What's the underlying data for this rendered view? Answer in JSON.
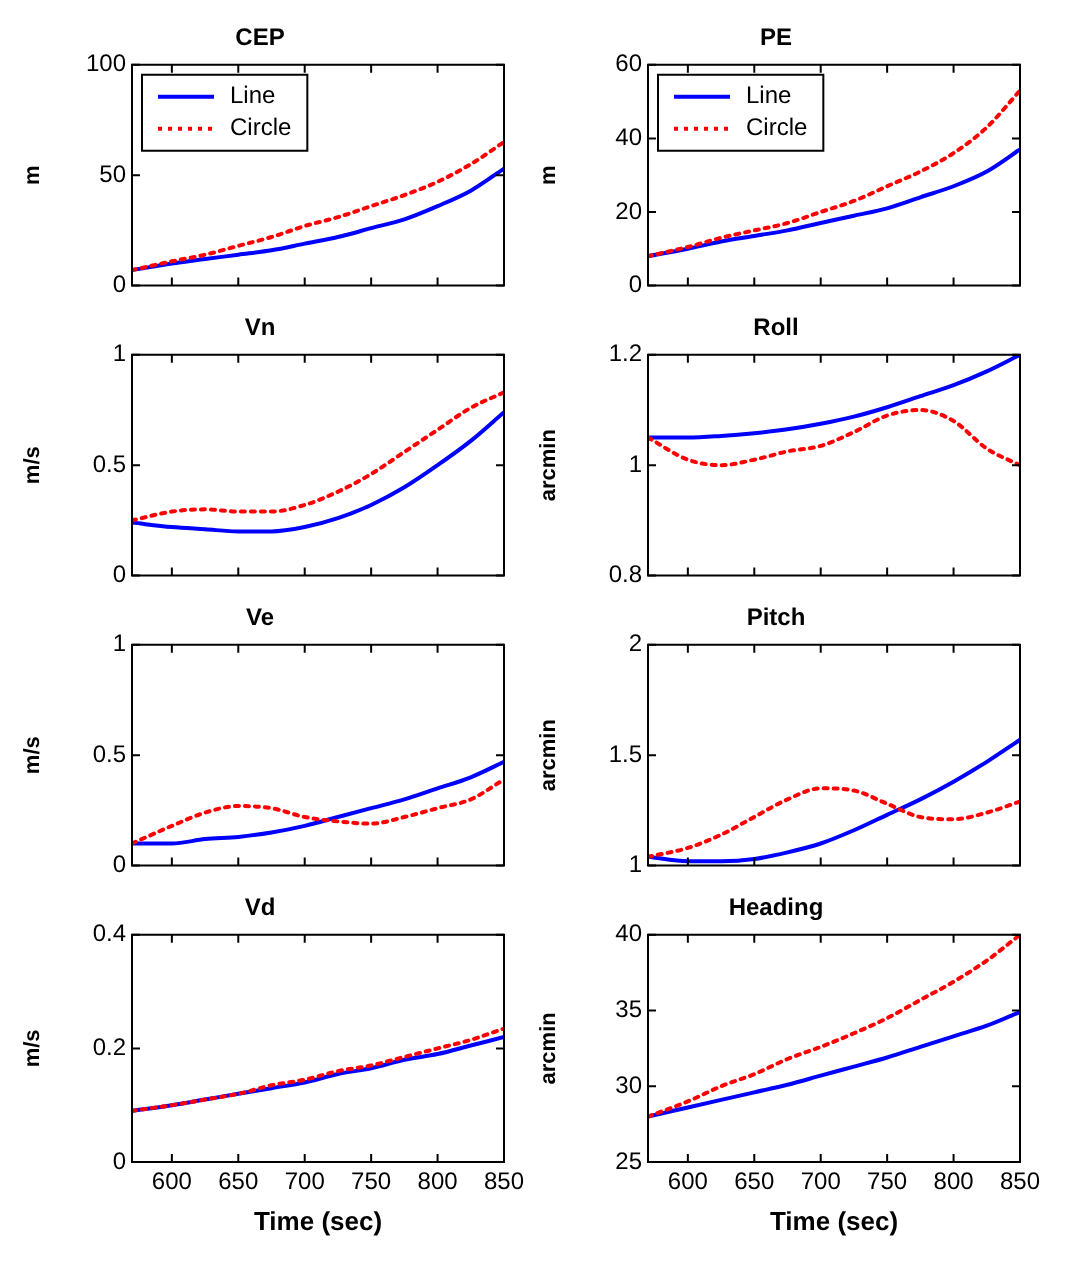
{
  "chart_data": [
    {
      "type": "line",
      "title": "CEP",
      "ylabel": "m",
      "x": [
        570,
        600,
        625,
        650,
        675,
        700,
        725,
        750,
        775,
        800,
        825,
        850
      ],
      "xlim": [
        570,
        850
      ],
      "xticks": [
        600,
        650,
        700,
        750,
        800,
        850
      ],
      "ylim": [
        0,
        100
      ],
      "yticks": [
        0,
        50,
        100
      ],
      "grid": false,
      "legend": "top left",
      "tick_labels": "y",
      "marker": "none",
      "series": [
        {
          "name": "Line",
          "color": "#0000ff",
          "line_style": "solid",
          "values": [
            7,
            10,
            12,
            14,
            16,
            19,
            22,
            26,
            30,
            36,
            43,
            53
          ]
        },
        {
          "name": "Circle",
          "color": "#ff0000",
          "line_style": "dotted",
          "values": [
            7,
            11,
            14,
            18,
            22,
            27,
            31,
            36,
            41,
            47,
            55,
            65
          ]
        }
      ]
    },
    {
      "type": "line",
      "title": "PE",
      "ylabel": "m",
      "x": [
        570,
        600,
        625,
        650,
        675,
        700,
        725,
        750,
        775,
        800,
        825,
        850
      ],
      "xlim": [
        570,
        850
      ],
      "xticks": [
        600,
        650,
        700,
        750,
        800,
        850
      ],
      "ylim": [
        0,
        60
      ],
      "yticks": [
        0,
        20,
        40,
        60
      ],
      "grid": false,
      "legend": "top left",
      "tick_labels": "y",
      "marker": "none",
      "series": [
        {
          "name": "Line",
          "color": "#0000ff",
          "line_style": "solid",
          "values": [
            8,
            10,
            12,
            13.5,
            15,
            17,
            19,
            21,
            24,
            27,
            31,
            37
          ]
        },
        {
          "name": "Circle",
          "color": "#ff0000",
          "line_style": "dotted",
          "values": [
            8,
            10.5,
            13,
            15,
            17,
            20,
            23,
            27,
            31,
            36,
            43,
            53
          ]
        }
      ]
    },
    {
      "type": "line",
      "title": "Vn",
      "ylabel": "m/s",
      "x": [
        570,
        600,
        625,
        650,
        675,
        700,
        725,
        750,
        775,
        800,
        825,
        850
      ],
      "xlim": [
        570,
        850
      ],
      "xticks": [
        600,
        650,
        700,
        750,
        800,
        850
      ],
      "ylim": [
        0,
        1
      ],
      "yticks": [
        0,
        0.5,
        1
      ],
      "grid": false,
      "tick_labels": "y",
      "marker": "none",
      "series": [
        {
          "color": "#0000ff",
          "line_style": "solid",
          "values": [
            0.24,
            0.22,
            0.21,
            0.2,
            0.2,
            0.22,
            0.26,
            0.32,
            0.4,
            0.5,
            0.61,
            0.74
          ]
        },
        {
          "color": "#ff0000",
          "line_style": "dotted",
          "values": [
            0.25,
            0.29,
            0.3,
            0.29,
            0.29,
            0.32,
            0.38,
            0.46,
            0.56,
            0.66,
            0.76,
            0.83
          ]
        }
      ]
    },
    {
      "type": "line",
      "title": "Roll",
      "ylabel": "arcmin",
      "x": [
        570,
        600,
        625,
        650,
        675,
        700,
        725,
        750,
        775,
        800,
        825,
        850
      ],
      "xlim": [
        570,
        850
      ],
      "xticks": [
        600,
        650,
        700,
        750,
        800,
        850
      ],
      "ylim": [
        0.8,
        1.2
      ],
      "yticks": [
        0.8,
        1,
        1.2
      ],
      "grid": false,
      "tick_labels": "y",
      "marker": "none",
      "series": [
        {
          "color": "#0000ff",
          "line_style": "solid",
          "values": [
            1.05,
            1.05,
            1.053,
            1.058,
            1.065,
            1.075,
            1.088,
            1.105,
            1.125,
            1.145,
            1.17,
            1.2
          ]
        },
        {
          "color": "#ff0000",
          "line_style": "dotted",
          "values": [
            1.05,
            1.01,
            1.0,
            1.01,
            1.025,
            1.035,
            1.06,
            1.09,
            1.1,
            1.08,
            1.03,
            1.0
          ]
        }
      ]
    },
    {
      "type": "line",
      "title": "Ve",
      "ylabel": "m/s",
      "x": [
        570,
        600,
        625,
        650,
        675,
        700,
        725,
        750,
        775,
        800,
        825,
        850
      ],
      "xlim": [
        570,
        850
      ],
      "xticks": [
        600,
        650,
        700,
        750,
        800,
        850
      ],
      "ylim": [
        0,
        1
      ],
      "yticks": [
        0,
        0.5,
        1
      ],
      "grid": false,
      "tick_labels": "y",
      "marker": "none",
      "series": [
        {
          "color": "#0000ff",
          "line_style": "solid",
          "values": [
            0.1,
            0.1,
            0.12,
            0.13,
            0.15,
            0.18,
            0.22,
            0.26,
            0.3,
            0.35,
            0.4,
            0.47
          ]
        },
        {
          "color": "#ff0000",
          "line_style": "dotted",
          "values": [
            0.1,
            0.18,
            0.24,
            0.27,
            0.26,
            0.22,
            0.2,
            0.19,
            0.22,
            0.26,
            0.3,
            0.39
          ]
        }
      ]
    },
    {
      "type": "line",
      "title": "Pitch",
      "ylabel": "arcmin",
      "x": [
        570,
        600,
        625,
        650,
        675,
        700,
        725,
        750,
        775,
        800,
        825,
        850
      ],
      "xlim": [
        570,
        850
      ],
      "xticks": [
        600,
        650,
        700,
        750,
        800,
        850
      ],
      "ylim": [
        1,
        2
      ],
      "yticks": [
        1,
        1.5,
        2
      ],
      "grid": false,
      "tick_labels": "y",
      "marker": "none",
      "series": [
        {
          "color": "#0000ff",
          "line_style": "solid",
          "values": [
            1.04,
            1.02,
            1.02,
            1.03,
            1.06,
            1.1,
            1.16,
            1.23,
            1.3,
            1.38,
            1.47,
            1.57
          ]
        },
        {
          "color": "#ff0000",
          "line_style": "dotted",
          "values": [
            1.04,
            1.08,
            1.14,
            1.22,
            1.3,
            1.35,
            1.34,
            1.28,
            1.22,
            1.21,
            1.24,
            1.29
          ]
        }
      ]
    },
    {
      "type": "line",
      "title": "Vd",
      "ylabel": "m/s",
      "xlabel": "Time (sec)",
      "x": [
        570,
        600,
        625,
        650,
        675,
        700,
        725,
        750,
        775,
        800,
        825,
        850
      ],
      "xlim": [
        570,
        850
      ],
      "xticks": [
        600,
        650,
        700,
        750,
        800,
        850
      ],
      "ylim": [
        0,
        0.4
      ],
      "yticks": [
        0,
        0.2,
        0.4
      ],
      "grid": false,
      "marker": "none",
      "series": [
        {
          "color": "#0000ff",
          "line_style": "solid",
          "values": [
            0.09,
            0.1,
            0.11,
            0.12,
            0.13,
            0.14,
            0.155,
            0.165,
            0.18,
            0.19,
            0.205,
            0.22
          ]
        },
        {
          "color": "#ff0000",
          "line_style": "dotted",
          "values": [
            0.09,
            0.1,
            0.11,
            0.12,
            0.135,
            0.145,
            0.16,
            0.17,
            0.185,
            0.2,
            0.215,
            0.235
          ]
        }
      ]
    },
    {
      "type": "line",
      "title": "Heading",
      "ylabel": "arcmin",
      "xlabel": "Time (sec)",
      "x": [
        570,
        600,
        625,
        650,
        675,
        700,
        725,
        750,
        775,
        800,
        825,
        850
      ],
      "xlim": [
        570,
        850
      ],
      "xticks": [
        600,
        650,
        700,
        750,
        800,
        850
      ],
      "ylim": [
        25,
        40
      ],
      "yticks": [
        25,
        30,
        35,
        40
      ],
      "grid": false,
      "marker": "none",
      "series": [
        {
          "color": "#0000ff",
          "line_style": "solid",
          "values": [
            28,
            28.6,
            29.1,
            29.6,
            30.1,
            30.7,
            31.3,
            31.9,
            32.6,
            33.3,
            34,
            34.9
          ]
        },
        {
          "color": "#ff0000",
          "line_style": "dotted",
          "values": [
            28,
            29,
            30,
            30.8,
            31.8,
            32.6,
            33.5,
            34.5,
            35.7,
            36.9,
            38.3,
            40
          ]
        }
      ]
    }
  ]
}
